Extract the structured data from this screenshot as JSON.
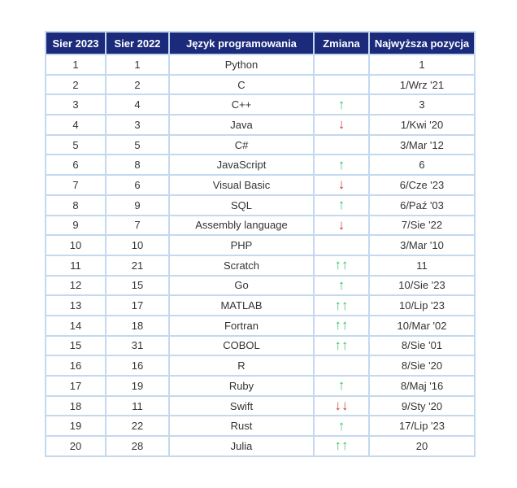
{
  "table": {
    "header": [
      "Sier 2023",
      "Sier 2022",
      "Język programowania",
      "Zmiana",
      "Najwyższa pozycja"
    ],
    "rows": [
      [
        "1",
        "1",
        "Python",
        null,
        "1"
      ],
      [
        "2",
        "2",
        "C",
        null,
        "1/Wrz '21"
      ],
      [
        "3",
        "4",
        "C++",
        "↑",
        "3"
      ],
      [
        "4",
        "3",
        "Java",
        "↓",
        "1/Kwi '20"
      ],
      [
        "5",
        "5",
        "C#",
        null,
        "3/Mar '12"
      ],
      [
        "6",
        "8",
        "JavaScript",
        "↑",
        "6"
      ],
      [
        "7",
        "6",
        "Visual Basic",
        "↓",
        "6/Cze '23"
      ],
      [
        "8",
        "9",
        "SQL",
        "↑",
        "6/Paź '03"
      ],
      [
        "9",
        "7",
        "Assembly language",
        "↓",
        "7/Sie '22"
      ],
      [
        "10",
        "10",
        "PHP",
        null,
        "3/Mar '10"
      ],
      [
        "11",
        "21",
        "Scratch",
        "↑↑",
        "11"
      ],
      [
        "12",
        "15",
        "Go",
        "↑",
        "10/Sie '23"
      ],
      [
        "13",
        "17",
        "MATLAB",
        "↑↑",
        "10/Lip '23"
      ],
      [
        "14",
        "18",
        "Fortran",
        "↑↑",
        "10/Mar '02"
      ],
      [
        "15",
        "31",
        "COBOL",
        "↑↑",
        "8/Sie '01"
      ],
      [
        "16",
        "16",
        "R",
        null,
        "8/Sie '20"
      ],
      [
        "17",
        "19",
        "Ruby",
        "↑",
        "8/Maj '16"
      ],
      [
        "18",
        "11",
        "Swift",
        "↓↓",
        "9/Sty '20"
      ],
      [
        "19",
        "22",
        "Rust",
        "↑",
        "17/Lip '23"
      ],
      [
        "20",
        "28",
        "Julia",
        "↑↑",
        "20"
      ]
    ]
  }
}
